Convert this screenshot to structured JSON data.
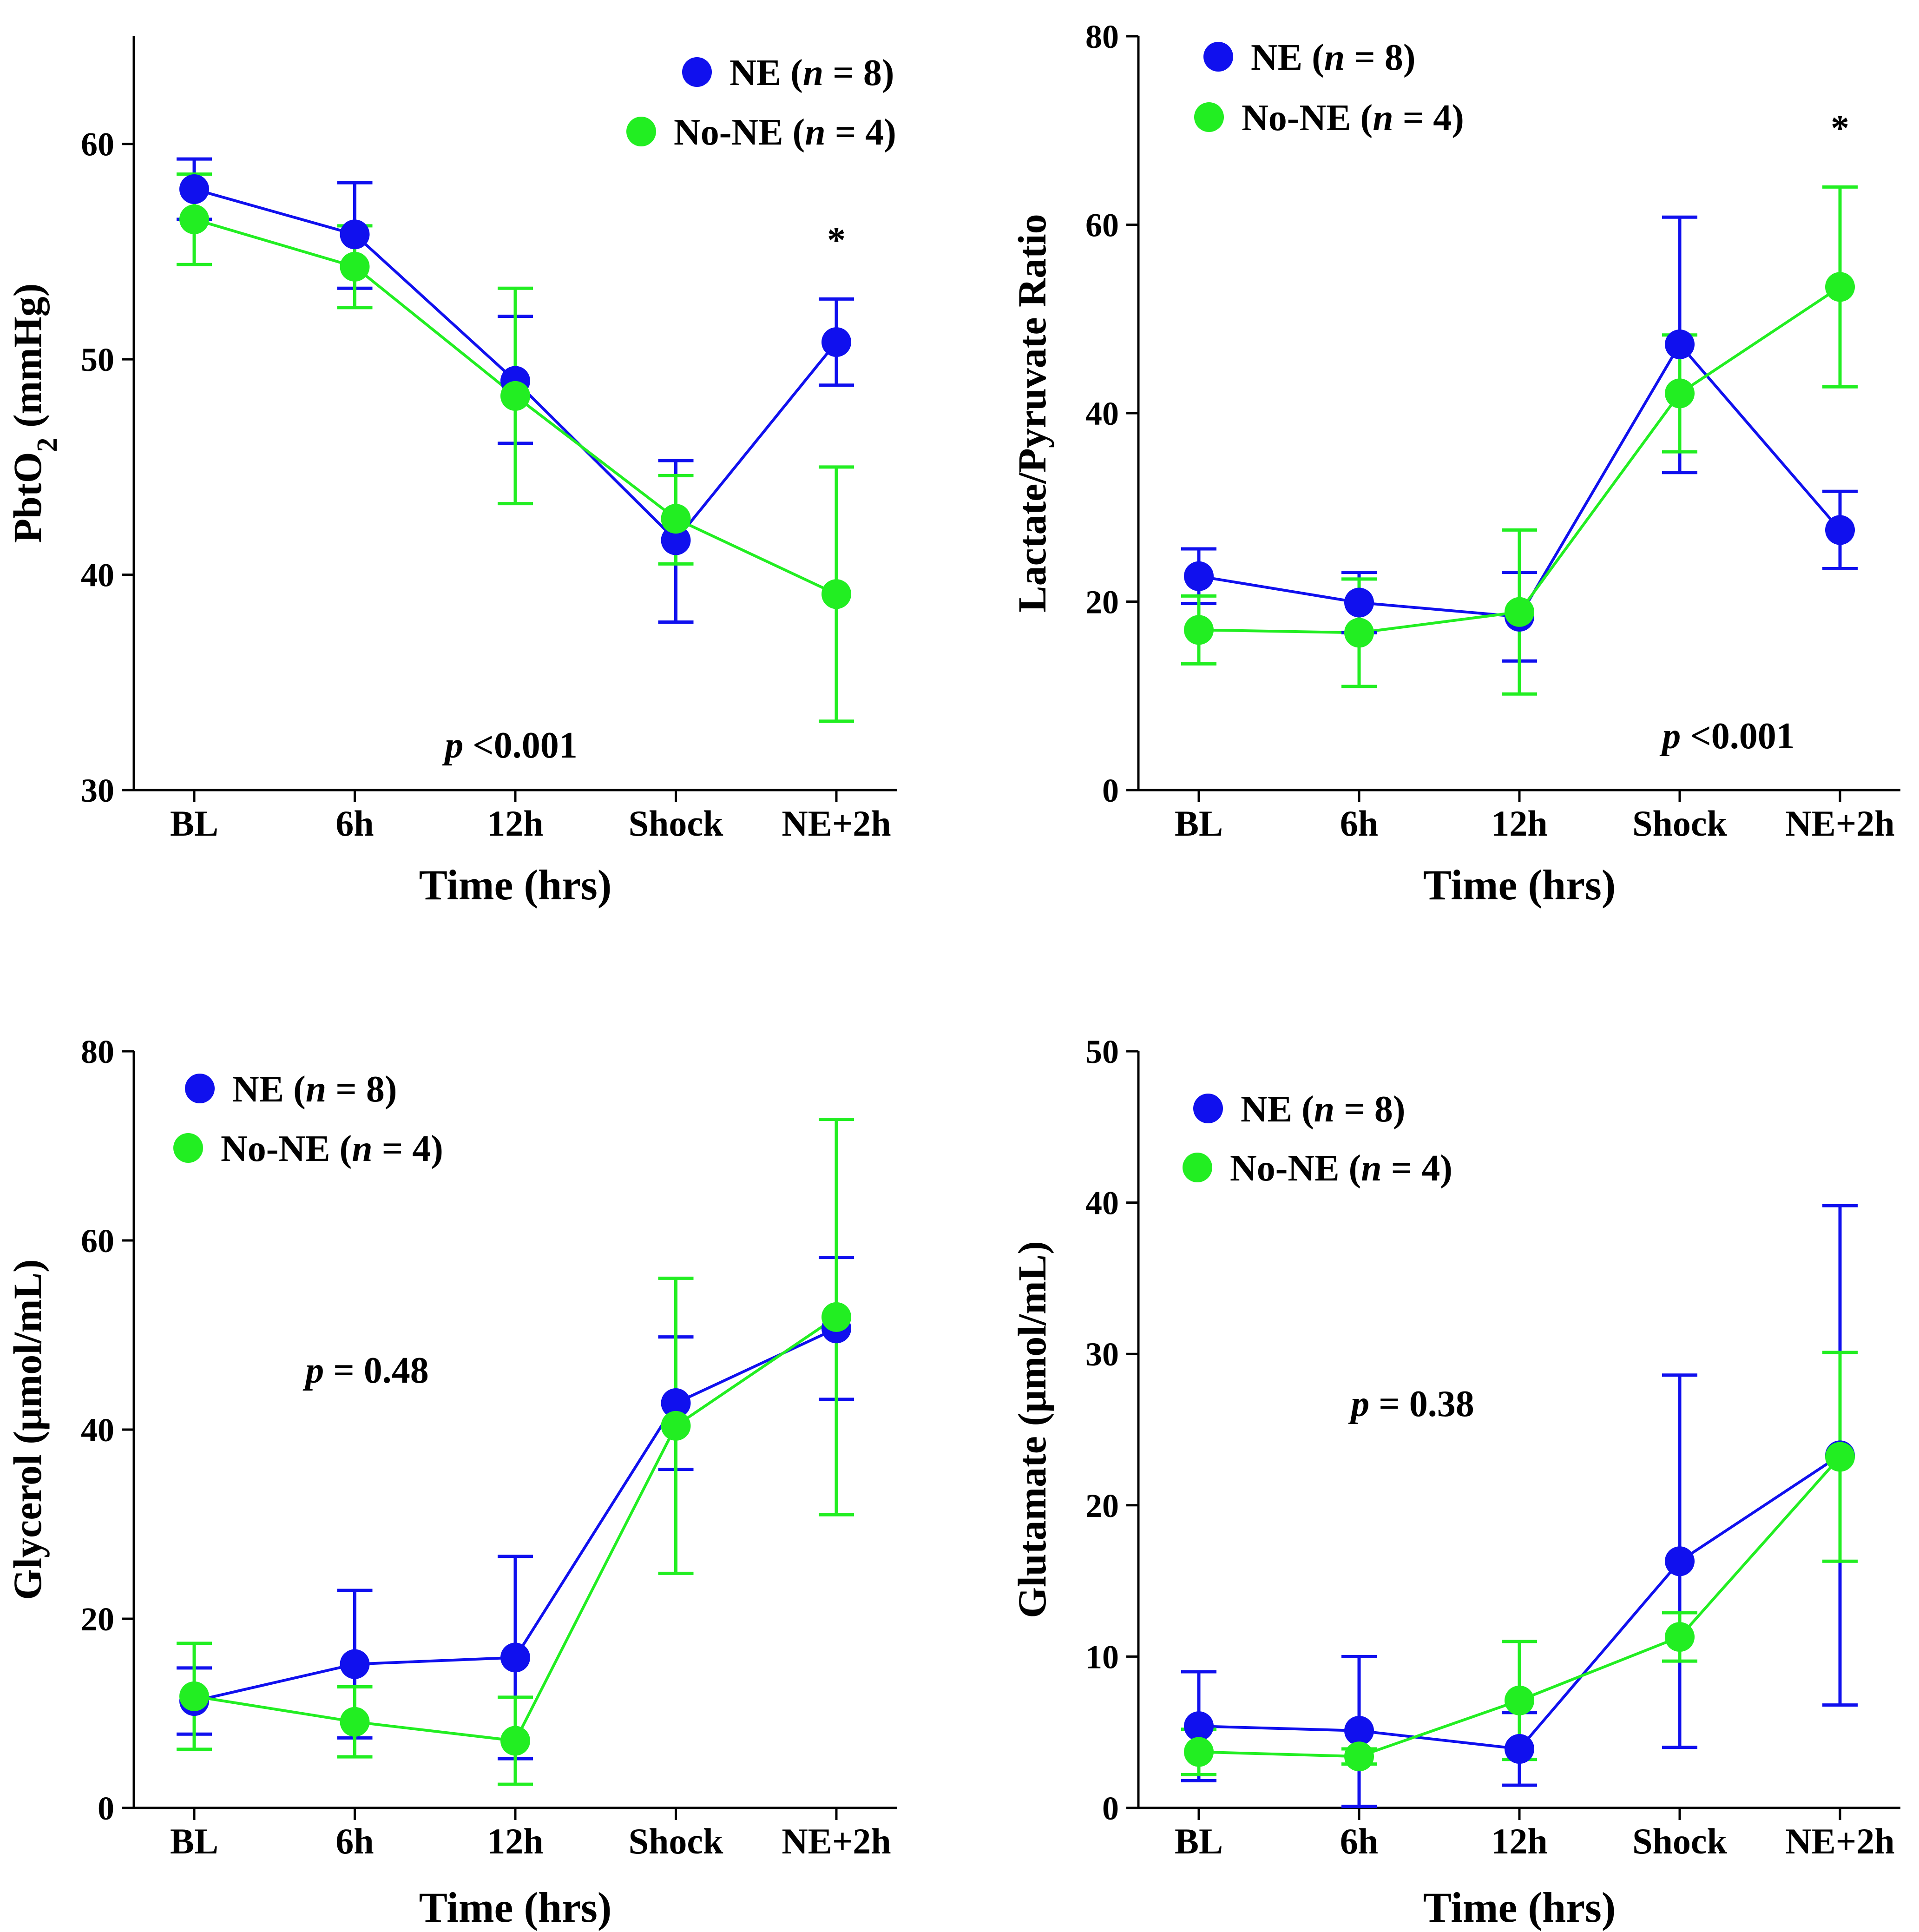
{
  "figure": {
    "chart_data": [
      {
        "type": "line",
        "panel": "top-left",
        "ylabel": "PbtO",
        "ylabel_sub": "2",
        "ylabel_tail": " (mmHg)",
        "xlabel": "Time (hrs)",
        "categories": [
          "BL",
          "6h",
          "12h",
          "Shock",
          "NE+2h"
        ],
        "ylim": [
          30,
          65
        ],
        "yticks": [
          30,
          40,
          50,
          60
        ],
        "legend": {
          "position": "top-right"
        },
        "pvalue": {
          "italic": "p",
          "text": " <0.001"
        },
        "significance": [
          {
            "category": "NE+2h",
            "label": "*"
          }
        ],
        "series": [
          {
            "name": "NE",
            "n": "8",
            "color": "#1010ee",
            "values": [
              57.9,
              55.8,
              49.0,
              41.6,
              50.8
            ],
            "errors": [
              [
                56.5,
                59.3
              ],
              [
                53.3,
                58.2
              ],
              [
                46.1,
                52.0
              ],
              [
                37.8,
                45.3
              ],
              [
                48.8,
                52.8
              ]
            ]
          },
          {
            "name": "No-NE",
            "n": "4",
            "color": "#22ee22",
            "values": [
              56.5,
              54.3,
              48.3,
              42.6,
              39.1
            ],
            "errors": [
              [
                54.4,
                58.6
              ],
              [
                52.4,
                56.2
              ],
              [
                43.3,
                53.3
              ],
              [
                40.5,
                44.6
              ],
              [
                33.2,
                45.0
              ]
            ]
          }
        ]
      },
      {
        "type": "line",
        "panel": "top-right",
        "ylabel": "Lactate/Pyruvate Ratio",
        "ylabel_sub": "",
        "ylabel_tail": "",
        "xlabel": "Time (hrs)",
        "categories": [
          "BL",
          "6h",
          "12h",
          "Shock",
          "NE+2h"
        ],
        "ylim": [
          0,
          80
        ],
        "yticks": [
          0,
          20,
          40,
          60,
          80
        ],
        "legend": {
          "position": "top-left"
        },
        "pvalue": {
          "italic": "p",
          "text": " <0.001"
        },
        "significance": [
          {
            "category": "NE+2h",
            "label": "*"
          }
        ],
        "series": [
          {
            "name": "NE",
            "n": "8",
            "color": "#1010ee",
            "values": [
              22.7,
              19.9,
              18.4,
              47.3,
              27.6
            ],
            "errors": [
              [
                19.8,
                25.6
              ],
              [
                16.7,
                23.1
              ],
              [
                13.7,
                23.1
              ],
              [
                33.7,
                60.8
              ],
              [
                23.5,
                31.7
              ]
            ]
          },
          {
            "name": "No-NE",
            "n": "4",
            "color": "#22ee22",
            "values": [
              17.0,
              16.7,
              18.9,
              42.1,
              53.4
            ],
            "errors": [
              [
                13.4,
                20.6
              ],
              [
                11.0,
                22.4
              ],
              [
                10.2,
                27.6
              ],
              [
                35.9,
                48.3
              ],
              [
                42.8,
                64.0
              ]
            ]
          }
        ]
      },
      {
        "type": "line",
        "panel": "bottom-left",
        "ylabel": "Glycerol (µmol/mL)",
        "ylabel_sub": "",
        "ylabel_tail": "",
        "xlabel": "Time (hrs)",
        "categories": [
          "BL",
          "6h",
          "12h",
          "Shock",
          "NE+2h"
        ],
        "ylim": [
          0,
          80
        ],
        "yticks": [
          0,
          20,
          40,
          60,
          80
        ],
        "legend": {
          "position": "top-left"
        },
        "pvalue": {
          "italic": "p",
          "text": " = 0.48"
        },
        "significance": [],
        "series": [
          {
            "name": "NE",
            "n": "8",
            "color": "#1010ee",
            "values": [
              11.3,
              15.2,
              15.9,
              42.8,
              50.7
            ],
            "errors": [
              [
                7.8,
                14.8
              ],
              [
                7.4,
                23.0
              ],
              [
                5.2,
                26.6
              ],
              [
                35.8,
                49.8
              ],
              [
                43.2,
                58.2
              ]
            ]
          },
          {
            "name": "No-NE",
            "n": "4",
            "color": "#22ee22",
            "values": [
              11.8,
              9.1,
              7.1,
              40.4,
              51.9
            ],
            "errors": [
              [
                6.2,
                17.4
              ],
              [
                5.4,
                12.8
              ],
              [
                2.5,
                11.7
              ],
              [
                24.8,
                56.0
              ],
              [
                31.0,
                72.8
              ]
            ]
          }
        ]
      },
      {
        "type": "line",
        "panel": "bottom-right",
        "ylabel": "Glutamate (µmol/mL)",
        "ylabel_sub": "",
        "ylabel_tail": "",
        "xlabel": "Time (hrs)",
        "categories": [
          "BL",
          "6h",
          "12h",
          "Shock",
          "NE+2h"
        ],
        "ylim": [
          0,
          50
        ],
        "yticks": [
          0,
          10,
          20,
          30,
          40,
          50
        ],
        "legend": {
          "position": "top-left"
        },
        "pvalue": {
          "italic": "p",
          "text": " = 0.38"
        },
        "significance": [],
        "series": [
          {
            "name": "NE",
            "n": "8",
            "color": "#1010ee",
            "values": [
              5.4,
              5.1,
              3.9,
              16.3,
              23.3
            ],
            "errors": [
              [
                1.8,
                9.0
              ],
              [
                0.1,
                10.0
              ],
              [
                1.5,
                6.3
              ],
              [
                4.0,
                28.6
              ],
              [
                6.8,
                39.8
              ]
            ]
          },
          {
            "name": "No-NE",
            "n": "4",
            "color": "#22ee22",
            "values": [
              3.7,
              3.4,
              7.1,
              11.3,
              23.2
            ],
            "errors": [
              [
                2.2,
                5.2
              ],
              [
                2.9,
                3.9
              ],
              [
                3.2,
                11.0
              ],
              [
                9.7,
                12.9
              ],
              [
                16.3,
                30.1
              ]
            ]
          }
        ]
      }
    ]
  }
}
